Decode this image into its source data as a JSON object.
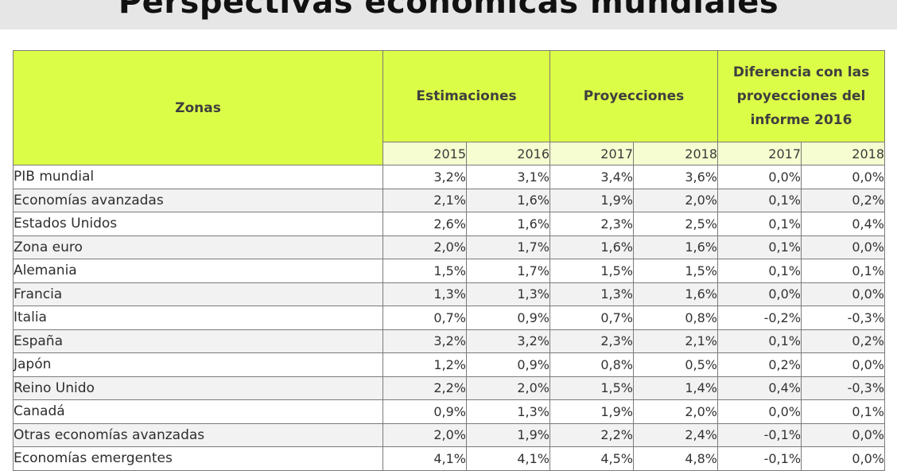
{
  "title": "Perspectivas económicas mundiales",
  "chart_data": {
    "type": "table",
    "title": "Perspectivas económicas mundiales",
    "header_groups": [
      {
        "label": "Zonas",
        "span": 1
      },
      {
        "label": "Estimaciones",
        "span": 2
      },
      {
        "label": "Proyecciones",
        "span": 2
      },
      {
        "label": "Diferencia con las proyecciones del informe 2016",
        "span": 2
      }
    ],
    "years": [
      "2015",
      "2016",
      "2017",
      "2018",
      "2017",
      "2018"
    ],
    "rows": [
      {
        "zone": "PIB mundial",
        "values": [
          "3,2%",
          "3,1%",
          "3,4%",
          "3,6%",
          "0,0%",
          "0,0%"
        ]
      },
      {
        "zone": "Economías avanzadas",
        "values": [
          "2,1%",
          "1,6%",
          "1,9%",
          "2,0%",
          "0,1%",
          "0,2%"
        ]
      },
      {
        "zone": "Estados Unidos",
        "values": [
          "2,6%",
          "1,6%",
          "2,3%",
          "2,5%",
          "0,1%",
          "0,4%"
        ]
      },
      {
        "zone": "Zona euro",
        "values": [
          "2,0%",
          "1,7%",
          "1,6%",
          "1,6%",
          "0,1%",
          "0,0%"
        ]
      },
      {
        "zone": "Alemania",
        "values": [
          "1,5%",
          "1,7%",
          "1,5%",
          "1,5%",
          "0,1%",
          "0,1%"
        ]
      },
      {
        "zone": "Francia",
        "values": [
          "1,3%",
          "1,3%",
          "1,3%",
          "1,6%",
          "0,0%",
          "0,0%"
        ]
      },
      {
        "zone": "Italia",
        "values": [
          "0,7%",
          "0,9%",
          "0,7%",
          "0,8%",
          "-0,2%",
          "-0,3%"
        ]
      },
      {
        "zone": "España",
        "values": [
          "3,2%",
          "3,2%",
          "2,3%",
          "2,1%",
          "0,1%",
          "0,2%"
        ]
      },
      {
        "zone": "Japón",
        "values": [
          "1,2%",
          "0,9%",
          "0,8%",
          "0,5%",
          "0,2%",
          "0,0%"
        ]
      },
      {
        "zone": "Reino Unido",
        "values": [
          "2,2%",
          "2,0%",
          "1,5%",
          "1,4%",
          "0,4%",
          "-0,3%"
        ]
      },
      {
        "zone": "Canadá",
        "values": [
          "0,9%",
          "1,3%",
          "1,9%",
          "2,0%",
          "0,0%",
          "0,1%"
        ]
      },
      {
        "zone": "Otras economías avanzadas",
        "values": [
          "2,0%",
          "1,9%",
          "2,2%",
          "2,4%",
          "-0,1%",
          "0,0%"
        ]
      },
      {
        "zone": "Economías emergentes",
        "values": [
          "4,1%",
          "4,1%",
          "4,5%",
          "4,8%",
          "-0,1%",
          "0,0%"
        ]
      }
    ]
  }
}
